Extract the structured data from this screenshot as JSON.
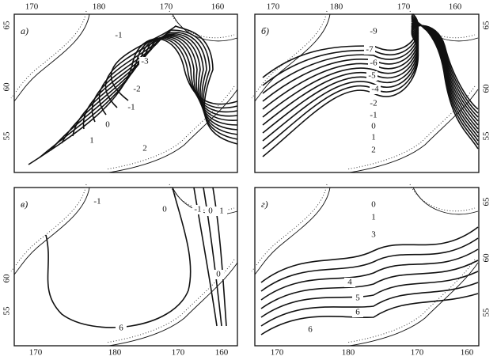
{
  "axes": {
    "top_left_lon": [
      "170",
      "180",
      "170",
      "160"
    ],
    "top_right_lon": [
      "170",
      "180",
      "170",
      "160"
    ],
    "bottom_left_lon": [
      "170",
      "180",
      "170",
      "160"
    ],
    "bottom_right_lon": [
      "170",
      "180",
      "170",
      "160"
    ],
    "top_left_lat": [
      "65",
      "60",
      "55"
    ],
    "top_right_lat": [
      "65",
      "60",
      "55"
    ],
    "bottom_left_lat": [
      "60",
      "55"
    ],
    "bottom_right_lat": [
      "65",
      "60",
      "55"
    ]
  },
  "panels": [
    {
      "label": "а)",
      "contour_labels": [
        "-1",
        "-3",
        "-2",
        "-1",
        "0",
        "1",
        "2"
      ]
    },
    {
      "label": "б)",
      "contour_labels": [
        "-9",
        "-7",
        "-6",
        "-5",
        "-4",
        "-2",
        "-1",
        "0",
        "1",
        "2"
      ]
    },
    {
      "label": "в)",
      "contour_labels": [
        "-1",
        "0",
        "-1",
        "0",
        "1",
        "0",
        "6"
      ]
    },
    {
      "label": "г)",
      "contour_labels": [
        "0",
        "1",
        "3",
        "4",
        "5",
        "6",
        "6"
      ]
    }
  ]
}
